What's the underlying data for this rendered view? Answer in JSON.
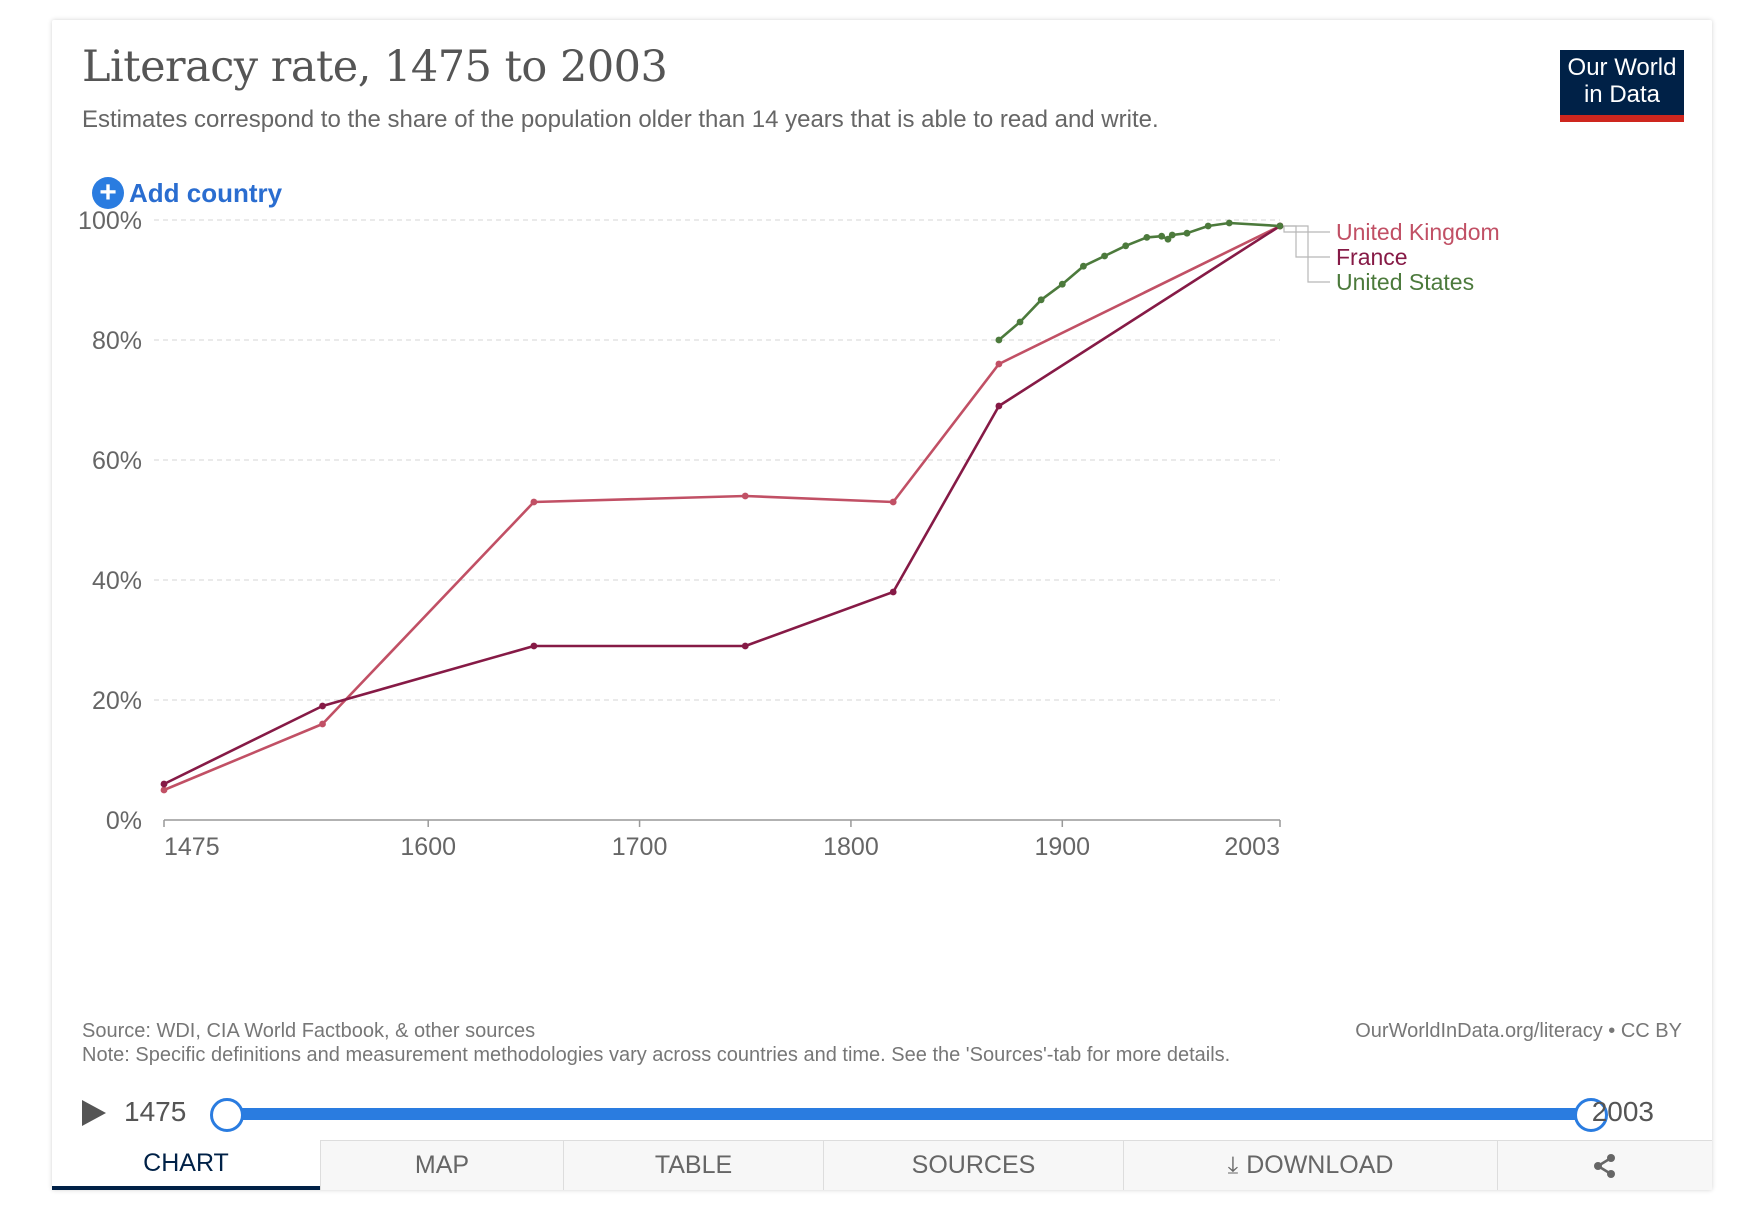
{
  "header": {
    "title": "Literacy rate, 1475 to 2003",
    "subtitle": "Estimates correspond to the share of the population older than 14 years that is able to read and write."
  },
  "logo": {
    "line1": "Our World",
    "line2": "in Data"
  },
  "controls": {
    "add_country_label": "Add country"
  },
  "colors": {
    "uk": "#c15065",
    "france": "#861a46",
    "us": "#4c7a3c",
    "accent": "#2a7ce0",
    "brand": "#002147"
  },
  "chart_data": {
    "type": "line",
    "title": "Literacy rate, 1475 to 2003",
    "xlabel": "",
    "ylabel": "",
    "xlim": [
      1475,
      2003
    ],
    "ylim": [
      0,
      100
    ],
    "x_ticks": [
      1475,
      1600,
      1700,
      1800,
      1900,
      2003
    ],
    "y_ticks": [
      0,
      20,
      40,
      60,
      80,
      100
    ],
    "y_tick_suffix": "%",
    "grid": true,
    "series": [
      {
        "name": "United Kingdom",
        "key": "uk",
        "points": [
          [
            1475,
            5
          ],
          [
            1550,
            16
          ],
          [
            1650,
            53
          ],
          [
            1750,
            54
          ],
          [
            1820,
            53
          ],
          [
            1870,
            76
          ],
          [
            2003,
            99
          ]
        ]
      },
      {
        "name": "France",
        "key": "france",
        "points": [
          [
            1475,
            6
          ],
          [
            1550,
            19
          ],
          [
            1650,
            29
          ],
          [
            1750,
            29
          ],
          [
            1820,
            38
          ],
          [
            1870,
            69
          ],
          [
            2003,
            99
          ]
        ]
      },
      {
        "name": "United States",
        "key": "us",
        "points": [
          [
            1870,
            80
          ],
          [
            1880,
            83
          ],
          [
            1890,
            86.7
          ],
          [
            1900,
            89.3
          ],
          [
            1910,
            92.3
          ],
          [
            1920,
            94
          ],
          [
            1930,
            95.7
          ],
          [
            1940,
            97.1
          ],
          [
            1947,
            97.3
          ],
          [
            1950,
            96.8
          ],
          [
            1952,
            97.5
          ],
          [
            1959,
            97.8
          ],
          [
            1969,
            99
          ],
          [
            1979,
            99.5
          ],
          [
            2003,
            99
          ]
        ]
      }
    ]
  },
  "footer": {
    "source": "Source: WDI, CIA World Factbook, & other sources",
    "url": "OurWorldInData.org/literacy • CC BY",
    "note": "Note: Specific definitions and measurement methodologies vary across countries and time. See the 'Sources'-tab for more details."
  },
  "timeline": {
    "start": "1475",
    "end": "2003"
  },
  "tabs": {
    "chart": "CHART",
    "map": "MAP",
    "table": "TABLE",
    "sources": "SOURCES",
    "download": "DOWNLOAD"
  }
}
